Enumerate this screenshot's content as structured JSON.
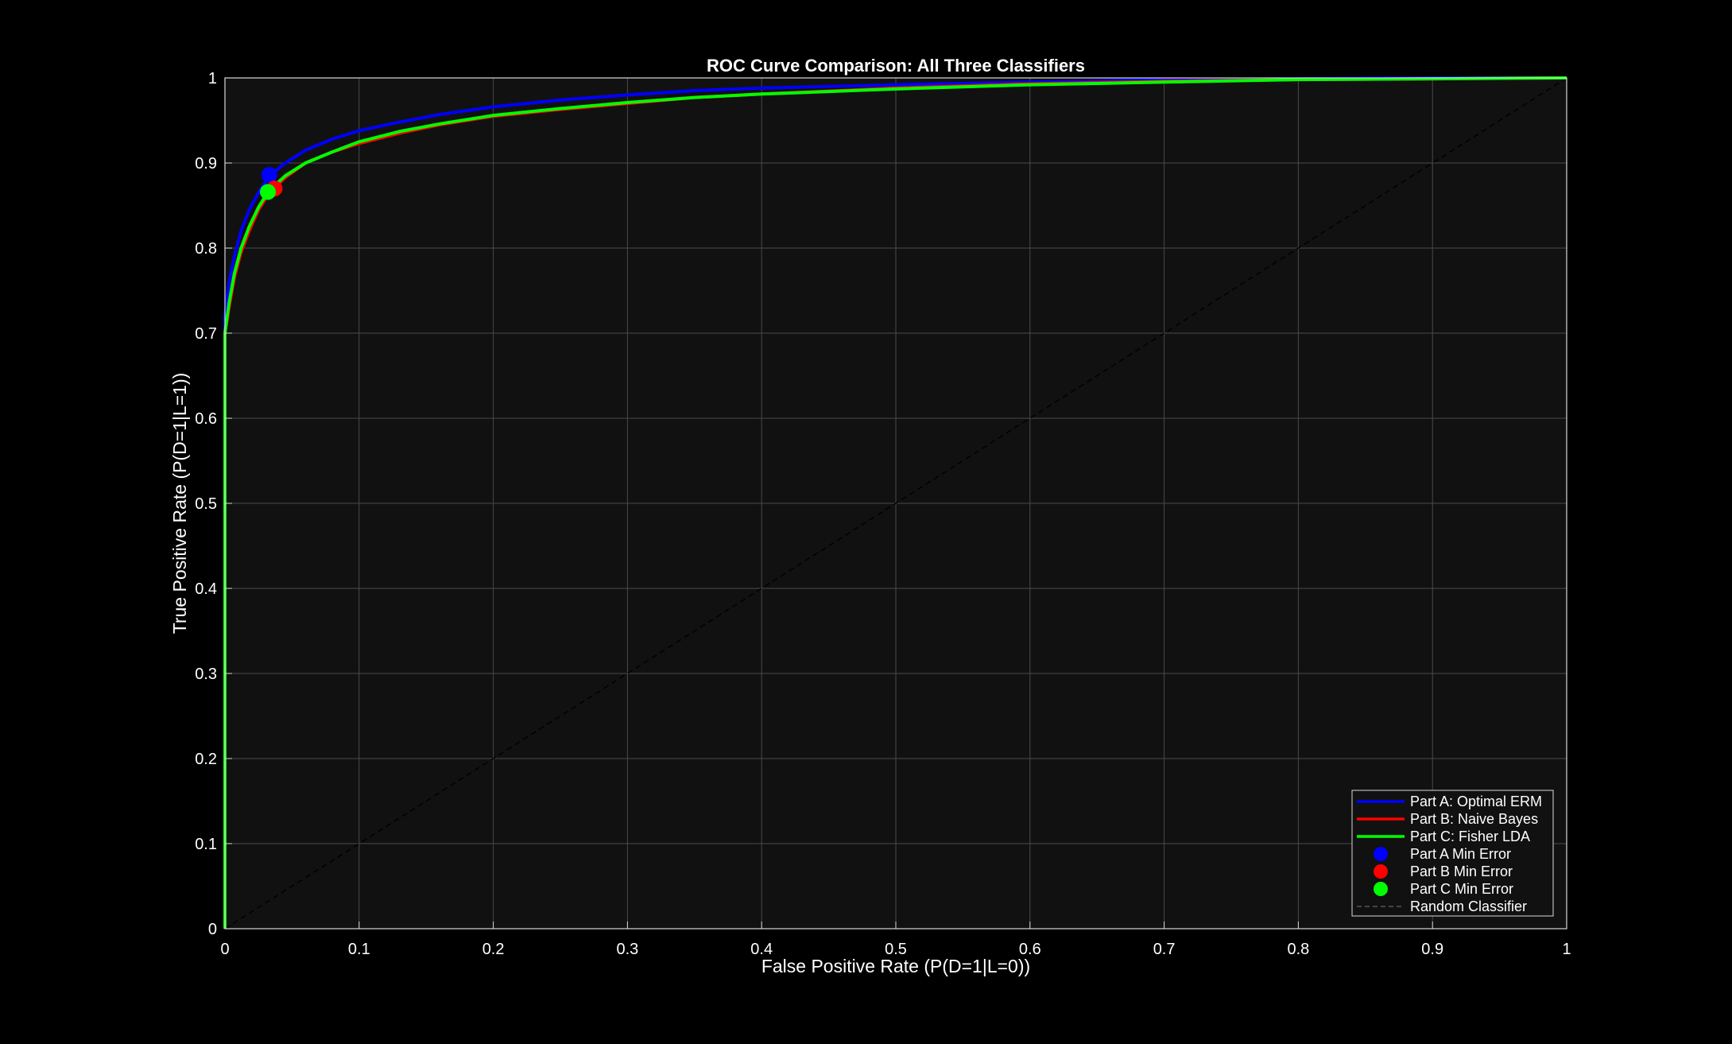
{
  "chart_data": {
    "type": "line",
    "title": "ROC Curve Comparison: All Three Classifiers",
    "xlabel": "False Positive Rate (P(D=1|L=0))",
    "ylabel": "True Positive Rate (P(D=1|L=1))",
    "xlim": [
      0,
      1
    ],
    "ylim": [
      0,
      1
    ],
    "xticks": [
      "0",
      "0.1",
      "0.2",
      "0.3",
      "0.4",
      "0.5",
      "0.6",
      "0.7",
      "0.8",
      "0.9",
      "1"
    ],
    "yticks": [
      "0",
      "0.1",
      "0.2",
      "0.3",
      "0.4",
      "0.5",
      "0.6",
      "0.7",
      "0.8",
      "0.9",
      "1"
    ],
    "grid": true,
    "legend_position": "bottom-right",
    "background": "#111111",
    "series": [
      {
        "name": "Part A: Optimal ERM",
        "color": "#0000ff",
        "style": "solid",
        "x": [
          0,
          0,
          0.003,
          0.007,
          0.012,
          0.018,
          0.025,
          0.033,
          0.045,
          0.06,
          0.08,
          0.1,
          0.13,
          0.16,
          0.2,
          0.25,
          0.3,
          0.35,
          0.4,
          0.5,
          0.6,
          0.7,
          0.8,
          0.9,
          1
        ],
        "y": [
          0,
          0.72,
          0.76,
          0.79,
          0.82,
          0.845,
          0.865,
          0.885,
          0.9,
          0.915,
          0.928,
          0.938,
          0.948,
          0.957,
          0.966,
          0.974,
          0.98,
          0.985,
          0.988,
          0.992,
          0.995,
          0.998,
          0.999,
          1,
          1
        ]
      },
      {
        "name": "Part B: Naive Bayes",
        "color": "#ff0000",
        "style": "solid",
        "x": [
          0,
          0,
          0.003,
          0.007,
          0.012,
          0.018,
          0.025,
          0.033,
          0.045,
          0.06,
          0.08,
          0.1,
          0.13,
          0.16,
          0.2,
          0.25,
          0.3,
          0.35,
          0.4,
          0.5,
          0.6,
          0.7,
          0.8,
          0.9,
          1
        ],
        "y": [
          0,
          0.7,
          0.73,
          0.765,
          0.795,
          0.82,
          0.845,
          0.865,
          0.883,
          0.9,
          0.913,
          0.923,
          0.935,
          0.945,
          0.955,
          0.963,
          0.97,
          0.977,
          0.981,
          0.988,
          0.993,
          0.996,
          0.998,
          0.999,
          1
        ]
      },
      {
        "name": "Part C: Fisher LDA",
        "color": "#00ff00",
        "style": "solid",
        "x": [
          0,
          0,
          0.003,
          0.007,
          0.012,
          0.018,
          0.025,
          0.033,
          0.045,
          0.06,
          0.08,
          0.1,
          0.13,
          0.16,
          0.2,
          0.25,
          0.3,
          0.35,
          0.4,
          0.5,
          0.6,
          0.7,
          0.8,
          0.9,
          1
        ],
        "y": [
          0,
          0.7,
          0.735,
          0.77,
          0.8,
          0.825,
          0.848,
          0.868,
          0.885,
          0.9,
          0.913,
          0.925,
          0.937,
          0.946,
          0.956,
          0.964,
          0.971,
          0.977,
          0.981,
          0.987,
          0.992,
          0.995,
          0.998,
          0.999,
          1
        ]
      },
      {
        "name": "Random Classifier",
        "color": "#000000",
        "style": "dashed",
        "x": [
          0,
          1
        ],
        "y": [
          0,
          1
        ]
      }
    ],
    "markers": [
      {
        "name": "Part A Min Error",
        "color": "#0000ff",
        "x": 0.033,
        "y": 0.886
      },
      {
        "name": "Part B Min Error",
        "color": "#ff0000",
        "x": 0.037,
        "y": 0.87
      },
      {
        "name": "Part C Min Error",
        "color": "#00ff00",
        "x": 0.032,
        "y": 0.866
      }
    ],
    "legend": [
      {
        "label": "Part A: Optimal ERM",
        "kind": "line",
        "color": "#0000ff"
      },
      {
        "label": "Part B: Naive Bayes",
        "kind": "line",
        "color": "#ff0000"
      },
      {
        "label": "Part C: Fisher LDA",
        "kind": "line",
        "color": "#00ff00"
      },
      {
        "label": "Part A Min Error",
        "kind": "marker",
        "color": "#0000ff"
      },
      {
        "label": "Part B Min Error",
        "kind": "marker",
        "color": "#ff0000"
      },
      {
        "label": "Part C Min Error",
        "kind": "marker",
        "color": "#00ff00"
      },
      {
        "label": "Random Classifier",
        "kind": "dashed",
        "color": "#000000"
      }
    ]
  }
}
